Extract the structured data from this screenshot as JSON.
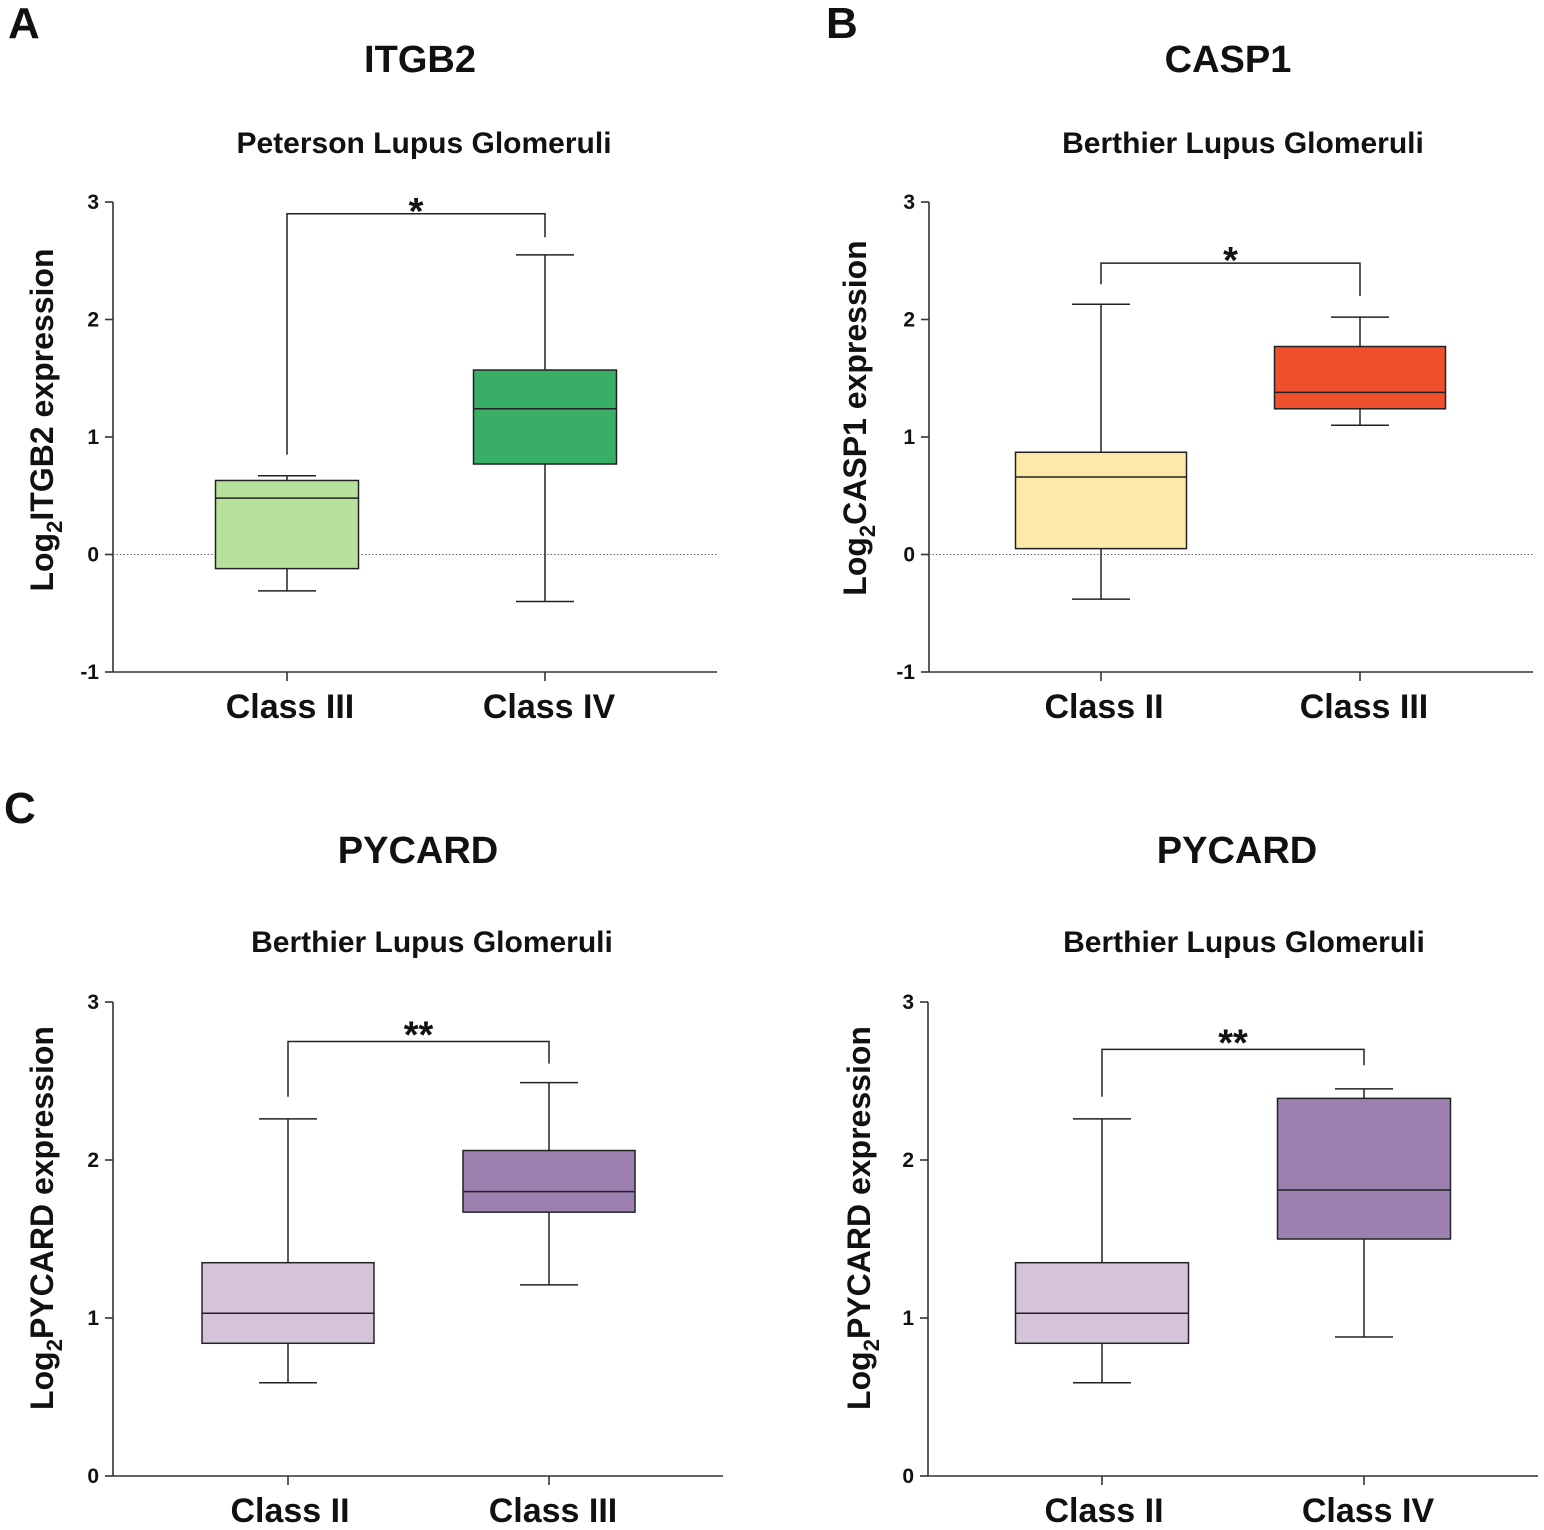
{
  "figure": {
    "panel_labels": [
      "A",
      "B",
      "C"
    ]
  },
  "chart_data": [
    {
      "type": "box",
      "panel": "A",
      "title": "ITGB2",
      "title_color": "#3bb36a",
      "subtitle": "Peterson Lupus Glomeruli",
      "ylabel_prefix": "Log",
      "ylabel_sub": "2",
      "ylabel_rest": "ITGB2 expression",
      "ylim": [
        -1,
        3
      ],
      "yticks": [
        -1,
        0,
        1,
        2,
        3
      ],
      "zero_line": true,
      "categories": [
        "Class III",
        "Class IV"
      ],
      "boxes": [
        {
          "min": -0.31,
          "q1": -0.12,
          "median": 0.48,
          "q3": 0.63,
          "max": 0.67,
          "color": "#b8e29c"
        },
        {
          "min": -0.4,
          "q1": 0.77,
          "median": 1.24,
          "q3": 1.57,
          "max": 2.55,
          "color": "#38ae66"
        }
      ],
      "significance": {
        "label": "*",
        "level": 2.9,
        "from_values": [
          0.85,
          2.7
        ]
      }
    },
    {
      "type": "box",
      "panel": "B",
      "title": "CASP1",
      "title_color": "#f0502b",
      "subtitle": "Berthier Lupus Glomeruli",
      "ylabel_prefix": "Log",
      "ylabel_sub": "2",
      "ylabel_rest": "CASP1 expression",
      "ylim": [
        -1,
        3
      ],
      "yticks": [
        -1,
        0,
        1,
        2,
        3
      ],
      "zero_line": true,
      "categories": [
        "Class II",
        "Class III"
      ],
      "boxes": [
        {
          "min": -0.38,
          "q1": 0.05,
          "median": 0.66,
          "q3": 0.87,
          "max": 2.13,
          "color": "#fdeaa8"
        },
        {
          "min": 1.1,
          "q1": 1.24,
          "median": 1.38,
          "q3": 1.77,
          "max": 2.02,
          "color": "#f0502b"
        }
      ],
      "significance": {
        "label": "*",
        "level": 2.48,
        "from_values": [
          2.3,
          2.2
        ]
      }
    },
    {
      "type": "box",
      "panel": "C",
      "title": "PYCARD",
      "title_color": "#9c80b0",
      "subtitle": "Berthier Lupus Glomeruli",
      "ylabel_prefix": "Log",
      "ylabel_sub": "2",
      "ylabel_rest": "PYCARD expression",
      "ylim": [
        0,
        3
      ],
      "yticks": [
        0,
        1,
        2,
        3
      ],
      "zero_line": false,
      "categories": [
        "Class II",
        "Class III"
      ],
      "boxes": [
        {
          "min": 0.59,
          "q1": 0.84,
          "median": 1.03,
          "q3": 1.35,
          "max": 2.26,
          "color": "#d4c3d9"
        },
        {
          "min": 1.21,
          "q1": 1.67,
          "median": 1.8,
          "q3": 2.06,
          "max": 2.49,
          "color": "#9c80b0"
        }
      ],
      "significance": {
        "label": "**",
        "level": 2.75,
        "from_values": [
          2.4,
          2.61
        ]
      }
    },
    {
      "type": "box",
      "panel": "",
      "title": "PYCARD",
      "title_color": "#9c80b0",
      "subtitle": "Berthier Lupus Glomeruli",
      "ylabel_prefix": "Log",
      "ylabel_sub": "2",
      "ylabel_rest": "PYCARD expression",
      "ylim": [
        0,
        3
      ],
      "yticks": [
        0,
        1,
        2,
        3
      ],
      "zero_line": false,
      "categories": [
        "Class II",
        "Class IV"
      ],
      "boxes": [
        {
          "min": 0.59,
          "q1": 0.84,
          "median": 1.03,
          "q3": 1.35,
          "max": 2.26,
          "color": "#d4c3d9"
        },
        {
          "min": 0.88,
          "q1": 1.5,
          "median": 1.81,
          "q3": 2.39,
          "max": 2.45,
          "color": "#9c80b0"
        }
      ],
      "significance": {
        "label": "**",
        "level": 2.7,
        "from_values": [
          2.4,
          2.6
        ]
      }
    }
  ]
}
